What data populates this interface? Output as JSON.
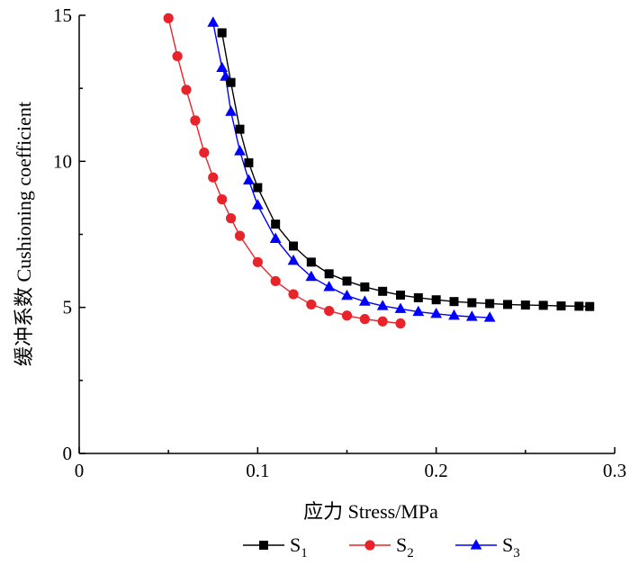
{
  "chart_data": {
    "type": "line",
    "title": "",
    "xlabel": "应力 Stress/MPa",
    "ylabel": "缓冲系数 Cushioning coefficient",
    "xlim": [
      0,
      0.3
    ],
    "ylim": [
      0,
      15
    ],
    "x_ticks": [
      "0",
      "0.1",
      "0.2",
      "0.3"
    ],
    "y_ticks": [
      "0",
      "5",
      "10",
      "15"
    ],
    "grid": false,
    "legend_position": "bottom",
    "series": [
      {
        "name": "S1",
        "base": "S",
        "subscript": "1",
        "color": "#000000",
        "marker": "square",
        "points": [
          [
            0.08,
            14.4
          ],
          [
            0.085,
            12.7
          ],
          [
            0.09,
            11.1
          ],
          [
            0.095,
            9.95
          ],
          [
            0.1,
            9.1
          ],
          [
            0.11,
            7.85
          ],
          [
            0.12,
            7.1
          ],
          [
            0.13,
            6.55
          ],
          [
            0.14,
            6.15
          ],
          [
            0.15,
            5.9
          ],
          [
            0.16,
            5.7
          ],
          [
            0.17,
            5.55
          ],
          [
            0.18,
            5.42
          ],
          [
            0.19,
            5.33
          ],
          [
            0.2,
            5.26
          ],
          [
            0.21,
            5.2
          ],
          [
            0.22,
            5.16
          ],
          [
            0.23,
            5.13
          ],
          [
            0.24,
            5.1
          ],
          [
            0.25,
            5.08
          ],
          [
            0.26,
            5.07
          ],
          [
            0.27,
            5.05
          ],
          [
            0.28,
            5.04
          ],
          [
            0.286,
            5.03
          ]
        ]
      },
      {
        "name": "S2",
        "base": "S",
        "subscript": "2",
        "color": "#e8232a",
        "marker": "circle",
        "points": [
          [
            0.05,
            14.9
          ],
          [
            0.055,
            13.6
          ],
          [
            0.06,
            12.45
          ],
          [
            0.065,
            11.4
          ],
          [
            0.07,
            10.3
          ],
          [
            0.075,
            9.45
          ],
          [
            0.08,
            8.7
          ],
          [
            0.085,
            8.05
          ],
          [
            0.09,
            7.45
          ],
          [
            0.1,
            6.55
          ],
          [
            0.11,
            5.9
          ],
          [
            0.12,
            5.45
          ],
          [
            0.13,
            5.1
          ],
          [
            0.14,
            4.88
          ],
          [
            0.15,
            4.72
          ],
          [
            0.16,
            4.6
          ],
          [
            0.17,
            4.52
          ],
          [
            0.18,
            4.45
          ]
        ]
      },
      {
        "name": "S3",
        "base": "S",
        "subscript": "3",
        "color": "#0000ff",
        "marker": "triangle",
        "points": [
          [
            0.075,
            14.75
          ],
          [
            0.08,
            13.2
          ],
          [
            0.082,
            12.9
          ],
          [
            0.085,
            11.7
          ],
          [
            0.09,
            10.35
          ],
          [
            0.095,
            9.35
          ],
          [
            0.1,
            8.5
          ],
          [
            0.11,
            7.35
          ],
          [
            0.12,
            6.6
          ],
          [
            0.13,
            6.05
          ],
          [
            0.14,
            5.7
          ],
          [
            0.15,
            5.4
          ],
          [
            0.16,
            5.2
          ],
          [
            0.17,
            5.05
          ],
          [
            0.18,
            4.95
          ],
          [
            0.19,
            4.85
          ],
          [
            0.2,
            4.78
          ],
          [
            0.21,
            4.72
          ],
          [
            0.22,
            4.68
          ],
          [
            0.23,
            4.65
          ]
        ]
      }
    ]
  }
}
